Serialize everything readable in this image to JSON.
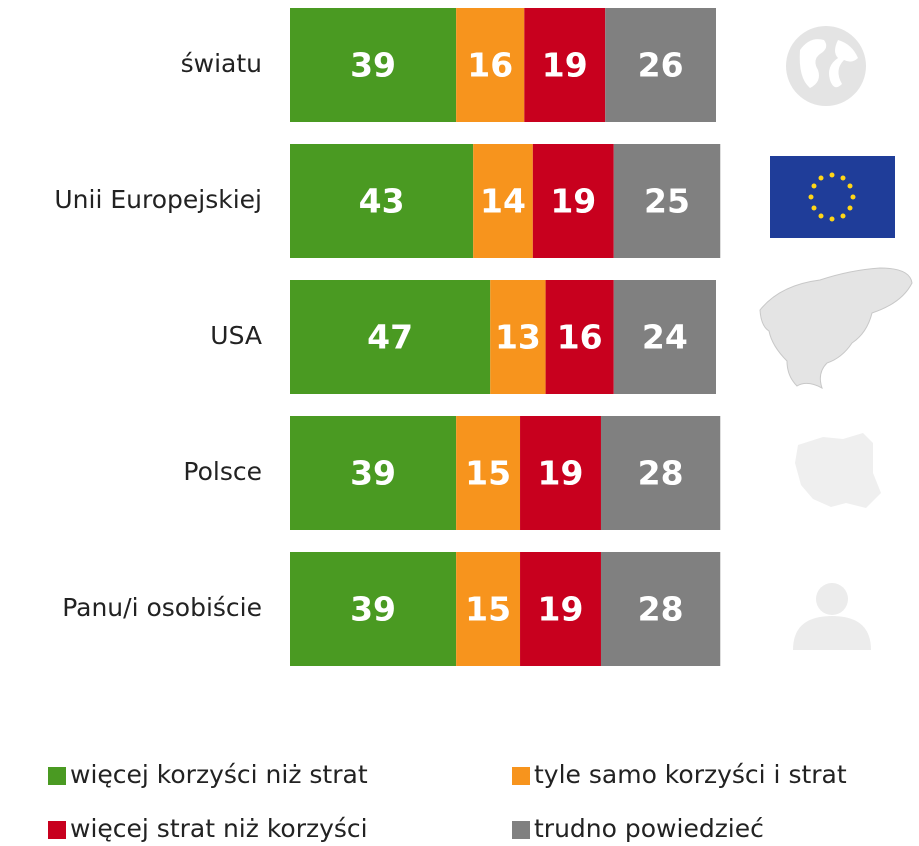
{
  "chart_data": {
    "type": "bar",
    "orientation": "horizontal",
    "stacked": true,
    "categories": [
      "światu",
      "Unii Europejskiej",
      "USA",
      "Polsce",
      "Panu/i osobiście"
    ],
    "series": [
      {
        "name": "więcej korzyści niż strat",
        "color": "#4a9a22",
        "values": [
          39,
          43,
          47,
          39,
          39
        ]
      },
      {
        "name": "tyle samo korzyści i strat",
        "color": "#f7941d",
        "values": [
          16,
          14,
          13,
          15,
          15
        ]
      },
      {
        "name": "więcej strat niż korzyści",
        "color": "#c8001e",
        "values": [
          19,
          19,
          16,
          19,
          19
        ]
      },
      {
        "name": "trudno powiedzieć",
        "color": "#808080",
        "values": [
          26,
          25,
          24,
          28,
          28
        ]
      }
    ],
    "xlim": [
      0,
      100
    ]
  }
}
